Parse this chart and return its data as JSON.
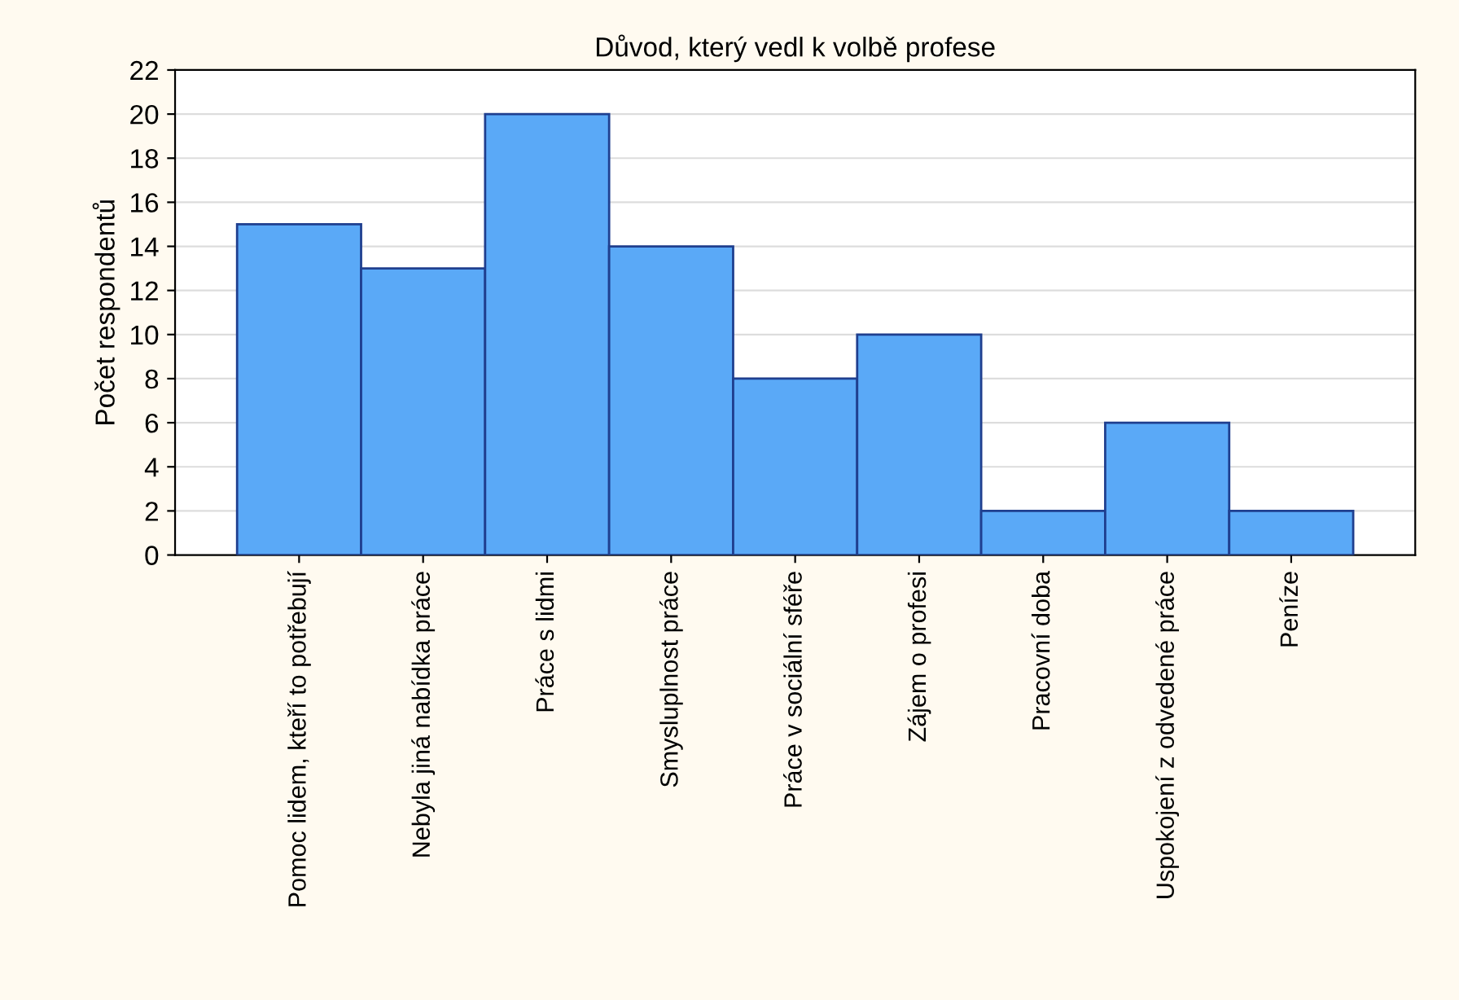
{
  "chart_data": {
    "type": "bar",
    "title": "Důvod, který vedl k volbě profese",
    "ylabel": "Počet respondentů",
    "categories": [
      "Pomoc lidem, kteří to potřebují",
      "Nebyla jiná nabídka práce",
      "Práce s lidmi",
      "Smysluplnost práce",
      "Práce v sociální sféře",
      "Zájem o profesi",
      "Pracovní doba",
      "Uspokojení z odvedené práce",
      "Peníze"
    ],
    "values": [
      15,
      13,
      20,
      14,
      8,
      10,
      2,
      6,
      2
    ],
    "color": "#5aa9f7",
    "ylim": [
      0,
      22
    ],
    "yticks": [
      0,
      2,
      4,
      6,
      8,
      10,
      12,
      14,
      16,
      18,
      20,
      22
    ],
    "grid": "y"
  }
}
